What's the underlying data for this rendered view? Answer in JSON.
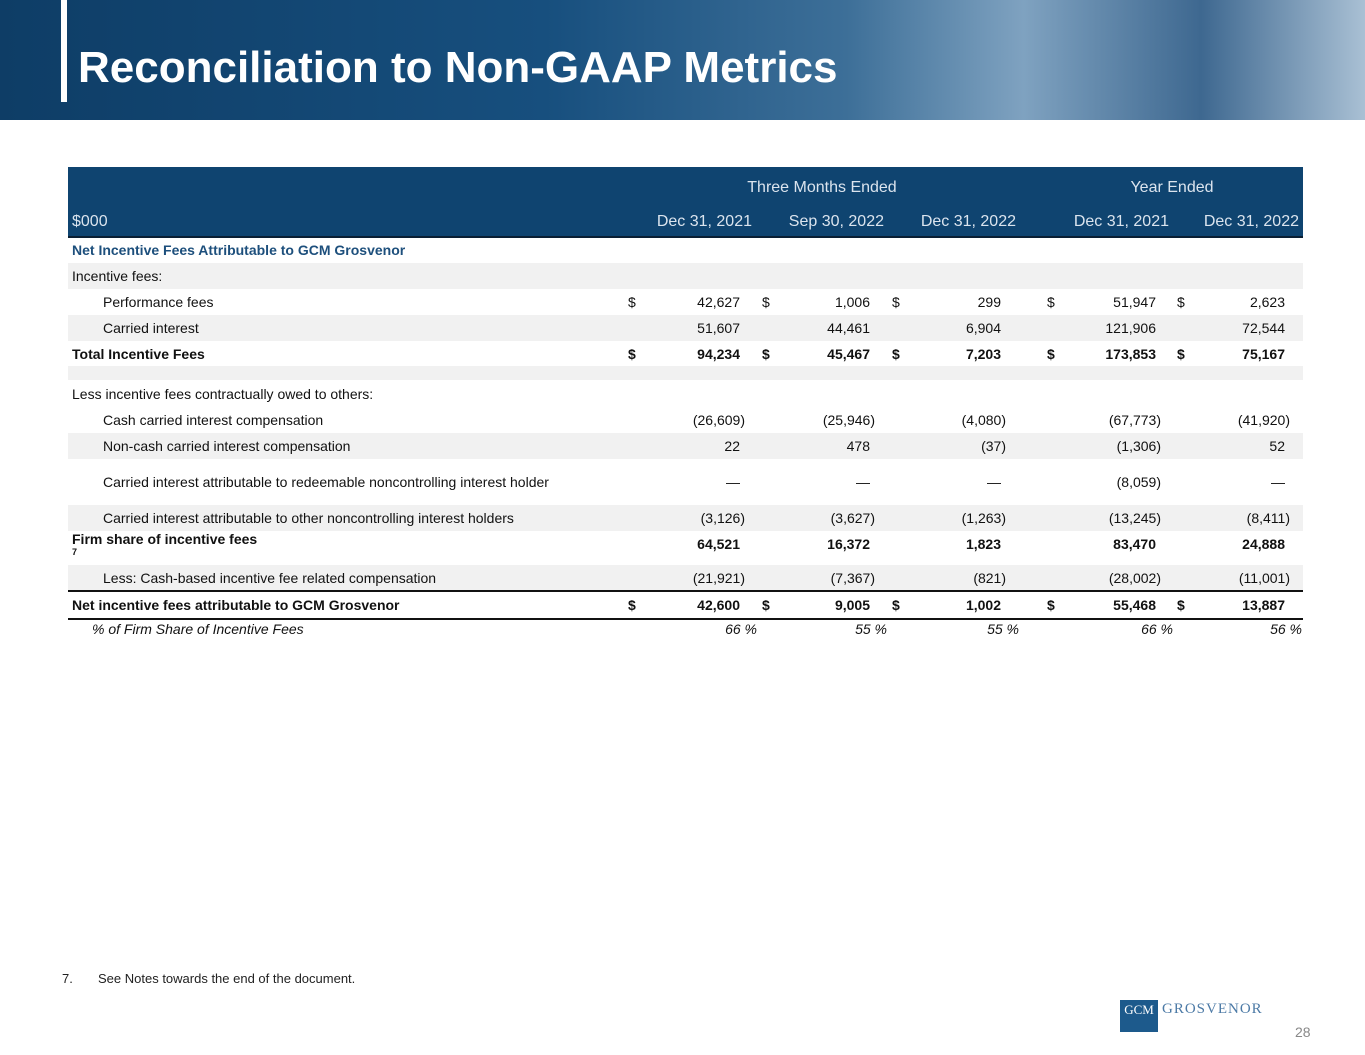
{
  "header": {
    "title": "Reconciliation to Non-GAAP Metrics"
  },
  "table": {
    "group_headers": [
      "Three Months Ended",
      "Year Ended"
    ],
    "unit": "$000",
    "columns": [
      "Dec 31, 2021",
      "Sep 30, 2022",
      "Dec 31, 2022",
      "Dec 31, 2021",
      "Dec 31, 2022"
    ],
    "rows": [
      {
        "label": "Net Incentive Fees Attributable to GCM Grosvenor"
      },
      {
        "label": "Incentive fees:"
      },
      {
        "label": "Performance fees",
        "cells": [
          {
            "symbol": "$",
            "value": "42,627"
          },
          {
            "symbol": "$",
            "value": "1,006"
          },
          {
            "symbol": "$",
            "value": "299"
          },
          {
            "symbol": "$",
            "value": "51,947"
          },
          {
            "symbol": "$",
            "value": "2,623"
          }
        ]
      },
      {
        "label": "Carried interest",
        "cells": [
          "51,607",
          "44,461",
          "6,904",
          "121,906",
          "72,544"
        ]
      },
      {
        "label": "Total Incentive Fees",
        "cells": [
          {
            "symbol": "$",
            "value": "94,234"
          },
          {
            "symbol": "$",
            "value": "45,467"
          },
          {
            "symbol": "$",
            "value": "7,203"
          },
          {
            "symbol": "$",
            "value": "173,853"
          },
          {
            "symbol": "$",
            "value": "75,167"
          }
        ]
      },
      {
        "label": "Less incentive fees contractually owed to others:"
      },
      {
        "label": "Cash carried interest compensation",
        "cells": [
          "(26,609)",
          "(25,946)",
          "(4,080)",
          "(67,773)",
          "(41,920)"
        ]
      },
      {
        "label": "Non-cash carried interest compensation",
        "cells": [
          "22",
          "478",
          "(37)",
          "(1,306)",
          "52"
        ]
      },
      {
        "label": "Carried interest attributable to redeemable noncontrolling interest holder",
        "cells": [
          "—",
          "—",
          "—",
          "(8,059)",
          "—"
        ]
      },
      {
        "label": "Carried interest attributable to other noncontrolling interest holders",
        "cells": [
          "(3,126)",
          "(3,627)",
          "(1,263)",
          "(13,245)",
          "(8,411)"
        ]
      },
      {
        "label": "Firm share of incentive fees",
        "note": "7",
        "cells": [
          "64,521",
          "16,372",
          "1,823",
          "83,470",
          "24,888"
        ]
      },
      {
        "label": "Less: Cash-based incentive fee related compensation",
        "cells": [
          "(21,921)",
          "(7,367)",
          "(821)",
          "(28,002)",
          "(11,001)"
        ]
      },
      {
        "label": "Net incentive fees attributable to GCM Grosvenor",
        "cells": [
          {
            "symbol": "$",
            "value": "42,600"
          },
          {
            "symbol": "$",
            "value": "9,005"
          },
          {
            "symbol": "$",
            "value": "1,002"
          },
          {
            "symbol": "$",
            "value": "55,468"
          },
          {
            "symbol": "$",
            "value": "13,887"
          }
        ]
      },
      {
        "label": "% of Firm Share of Incentive Fees",
        "cells": [
          "66 %",
          "55 %",
          "55 %",
          "66 %",
          "56 %"
        ]
      }
    ]
  },
  "footnote": {
    "number": "7.",
    "text": "See Notes towards the end of the document."
  },
  "logo": {
    "mark": "GCM",
    "name": "GROSVENOR"
  },
  "page_number": "28"
}
